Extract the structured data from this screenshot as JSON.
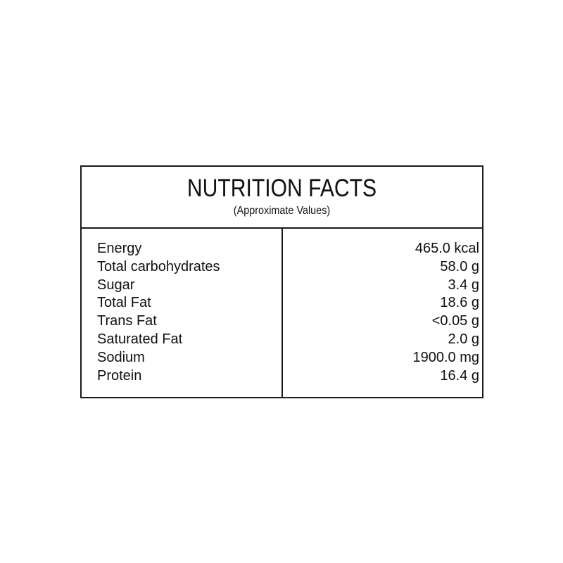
{
  "header": {
    "title": "NUTRITION FACTS",
    "subtitle": "(Approximate Values)"
  },
  "rows": [
    {
      "label": "Energy",
      "value": "465.0 kcal"
    },
    {
      "label": "Total carbohydrates",
      "value": "58.0 g"
    },
    {
      "label": "Sugar",
      "value": "3.4 g"
    },
    {
      "label": "Total Fat",
      "value": "18.6 g"
    },
    {
      "label": "Trans Fat",
      "value": "<0.05 g"
    },
    {
      "label": "Saturated Fat",
      "value": "2.0 g"
    },
    {
      "label": "Sodium",
      "value": "1900.0 mg"
    },
    {
      "label": "Protein",
      "value": "16.4 g"
    }
  ]
}
